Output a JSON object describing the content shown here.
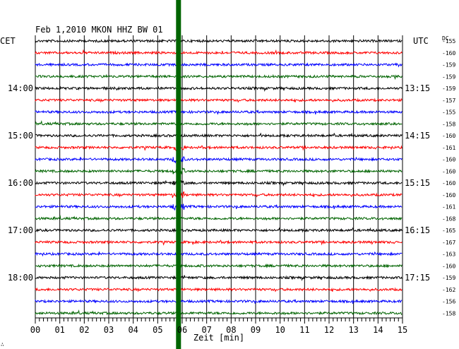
{
  "chart_data": {
    "type": "line",
    "title": "Feb 1,2010   MKON HHZ BW 01",
    "left_timezone": "CET",
    "right_timezone": "UTC",
    "dc_label": "DC",
    "xlabel": "Zeit [min]",
    "x_ticks": [
      "00",
      "01",
      "02",
      "03",
      "04",
      "05",
      "06",
      "07",
      "08",
      "09",
      "10",
      "11",
      "12",
      "13",
      "14",
      "15"
    ],
    "xlim": [
      0,
      15
    ],
    "trace_count": 24,
    "trace_interval_min": 15,
    "left_hour_labels": [
      {
        "row": 4,
        "text": "14:00"
      },
      {
        "row": 8,
        "text": "15:00"
      },
      {
        "row": 12,
        "text": "16:00"
      },
      {
        "row": 16,
        "text": "17:00"
      },
      {
        "row": 20,
        "text": "18:00"
      }
    ],
    "right_hour_labels": [
      {
        "row": 4,
        "text": "13:15"
      },
      {
        "row": 8,
        "text": "14:15"
      },
      {
        "row": 12,
        "text": "15:15"
      },
      {
        "row": 16,
        "text": "16:15"
      },
      {
        "row": 20,
        "text": "17:15"
      }
    ],
    "dc_offsets": [
      "-155",
      "-160",
      "-159",
      "-159",
      "-159",
      "-157",
      "-155",
      "-158",
      "-160",
      "-161",
      "-160",
      "-160",
      "-160",
      "-160",
      "-161",
      "-168",
      "-165",
      "-167",
      "-163",
      "-160",
      "-159",
      "-162",
      "-156",
      "-158"
    ],
    "trace_colors": [
      "#000000",
      "#ff0000",
      "#0000ff",
      "#006400"
    ],
    "marker": {
      "minute": 5.85,
      "color": "#006400"
    },
    "corner_mark": "∴"
  }
}
